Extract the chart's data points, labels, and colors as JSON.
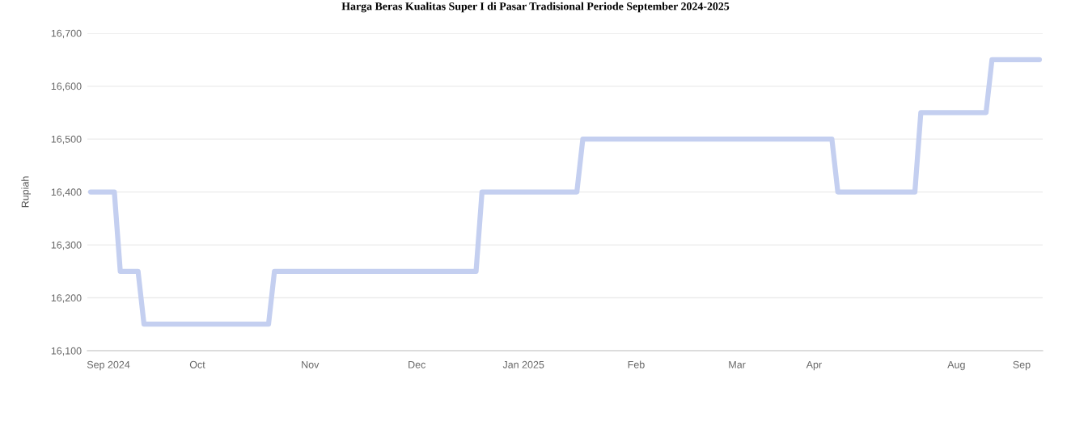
{
  "chart_data": {
    "type": "line",
    "title": "Harga Beras Kualitas Super I di Pasar Tradisional Periode September 2024-2025",
    "ylabel": "Rupiah",
    "categories": [
      null,
      null,
      null,
      "Sep 2024",
      null,
      null,
      null,
      null,
      null,
      null,
      null,
      null,
      null,
      null,
      null,
      null,
      null,
      null,
      "Oct",
      null,
      null,
      null,
      null,
      null,
      null,
      null,
      null,
      null,
      null,
      null,
      null,
      null,
      null,
      null,
      null,
      null,
      null,
      "Nov",
      null,
      null,
      null,
      null,
      null,
      null,
      null,
      null,
      null,
      null,
      null,
      null,
      null,
      null,
      null,
      null,
      null,
      "Dec",
      null,
      null,
      null,
      null,
      null,
      null,
      null,
      null,
      null,
      null,
      null,
      null,
      null,
      null,
      null,
      null,
      null,
      "Jan 2025",
      null,
      null,
      null,
      null,
      null,
      null,
      null,
      null,
      null,
      null,
      null,
      null,
      null,
      null,
      null,
      null,
      null,
      null,
      "Feb",
      null,
      null,
      null,
      null,
      null,
      null,
      null,
      null,
      null,
      null,
      null,
      null,
      null,
      null,
      null,
      null,
      "Mar",
      null,
      null,
      null,
      null,
      null,
      null,
      null,
      null,
      null,
      null,
      null,
      null,
      "Apr",
      null,
      null,
      null,
      null,
      null,
      null,
      null,
      null,
      null,
      null,
      null,
      null,
      null,
      null,
      null,
      null,
      null,
      null,
      null,
      null,
      null,
      null,
      null,
      "Aug",
      null,
      null,
      null,
      null,
      null,
      null,
      null,
      null,
      null,
      null,
      "Sep",
      null,
      null,
      null
    ],
    "series": [
      {
        "color": "#c4cff0",
        "values": [
          16400,
          16400,
          16400,
          16400,
          16400,
          16250,
          16250,
          16250,
          16250,
          16150,
          16150,
          16150,
          16150,
          16150,
          16150,
          16150,
          16150,
          16150,
          16150,
          16150,
          16150,
          16150,
          16150,
          16150,
          16150,
          16150,
          16150,
          16150,
          16150,
          16150,
          16150,
          16250,
          16250,
          16250,
          16250,
          16250,
          16250,
          16250,
          16250,
          16250,
          16250,
          16250,
          16250,
          16250,
          16250,
          16250,
          16250,
          16250,
          16250,
          16250,
          16250,
          16250,
          16250,
          16250,
          16250,
          16250,
          16250,
          16250,
          16250,
          16250,
          16250,
          16250,
          16250,
          16250,
          16250,
          16250,
          16400,
          16400,
          16400,
          16400,
          16400,
          16400,
          16400,
          16400,
          16400,
          16400,
          16400,
          16400,
          16400,
          16400,
          16400,
          16400,
          16400,
          16500,
          16500,
          16500,
          16500,
          16500,
          16500,
          16500,
          16500,
          16500,
          16500,
          16500,
          16500,
          16500,
          16500,
          16500,
          16500,
          16500,
          16500,
          16500,
          16500,
          16500,
          16500,
          16500,
          16500,
          16500,
          16500,
          16500,
          16500,
          16500,
          16500,
          16500,
          16500,
          16500,
          16500,
          16500,
          16500,
          16500,
          16500,
          16500,
          16500,
          16500,
          16500,
          16500,
          16400,
          16400,
          16400,
          16400,
          16400,
          16400,
          16400,
          16400,
          16400,
          16400,
          16400,
          16400,
          16400,
          16400,
          16550,
          16550,
          16550,
          16550,
          16550,
          16550,
          16550,
          16550,
          16550,
          16550,
          16550,
          16550,
          16650,
          16650,
          16650,
          16650,
          16650,
          16650,
          16650,
          16650,
          16650
        ]
      }
    ],
    "ylim": [
      16100,
      16700
    ],
    "yticks": [
      {
        "value": 16100,
        "label": "16,100"
      },
      {
        "value": 16200,
        "label": "16,200"
      },
      {
        "value": 16300,
        "label": "16,300"
      },
      {
        "value": 16400,
        "label": "16,400"
      },
      {
        "value": 16500,
        "label": "16,500"
      },
      {
        "value": 16600,
        "label": "16,600"
      },
      {
        "value": 16700,
        "label": "16,700"
      }
    ],
    "grid": "y",
    "line_style": "solid"
  }
}
